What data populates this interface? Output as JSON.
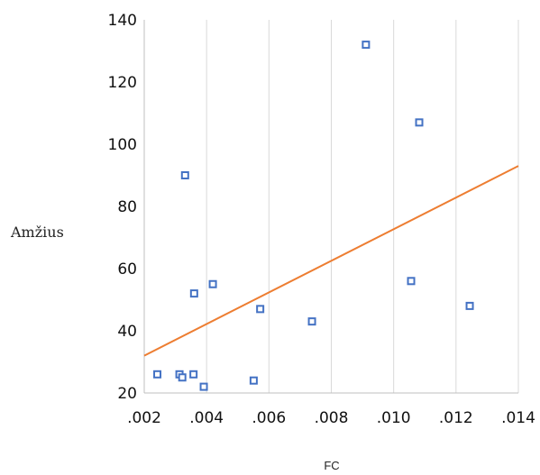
{
  "chart_data": {
    "type": "scatter",
    "title": "",
    "xlabel": "FC",
    "ylabel": "Amžius",
    "xlim": [
      0.002,
      0.014
    ],
    "ylim": [
      20,
      140
    ],
    "x_ticks": [
      0.002,
      0.004,
      0.006,
      0.008,
      0.01,
      0.012,
      0.014
    ],
    "x_tick_labels": [
      ".002",
      ".004",
      ".006",
      ".008",
      ".010",
      ".012",
      ".014"
    ],
    "y_ticks": [
      20,
      40,
      60,
      80,
      100,
      120,
      140
    ],
    "y_tick_labels": [
      "20",
      "40",
      "60",
      "80",
      "100",
      "120",
      "140"
    ],
    "grid": "vertical",
    "legend": "none",
    "series": [
      {
        "points": [
          {
            "x": 0.00242,
            "y": 26
          },
          {
            "x": 0.00313,
            "y": 26
          },
          {
            "x": 0.00322,
            "y": 25
          },
          {
            "x": 0.00331,
            "y": 90
          },
          {
            "x": 0.00358,
            "y": 26
          },
          {
            "x": 0.0036,
            "y": 52
          },
          {
            "x": 0.00391,
            "y": 22
          },
          {
            "x": 0.0042,
            "y": 55
          },
          {
            "x": 0.00551,
            "y": 24
          },
          {
            "x": 0.00572,
            "y": 47
          },
          {
            "x": 0.00738,
            "y": 43
          },
          {
            "x": 0.00911,
            "y": 132
          },
          {
            "x": 0.01056,
            "y": 56
          },
          {
            "x": 0.01082,
            "y": 107
          },
          {
            "x": 0.01244,
            "y": 48
          }
        ],
        "color": "#4472c4"
      }
    ],
    "trendline": {
      "type": "linear",
      "color": "#ed7d31",
      "from": {
        "x": 0.002,
        "y": 32
      },
      "to": {
        "x": 0.014,
        "y": 93
      }
    }
  }
}
